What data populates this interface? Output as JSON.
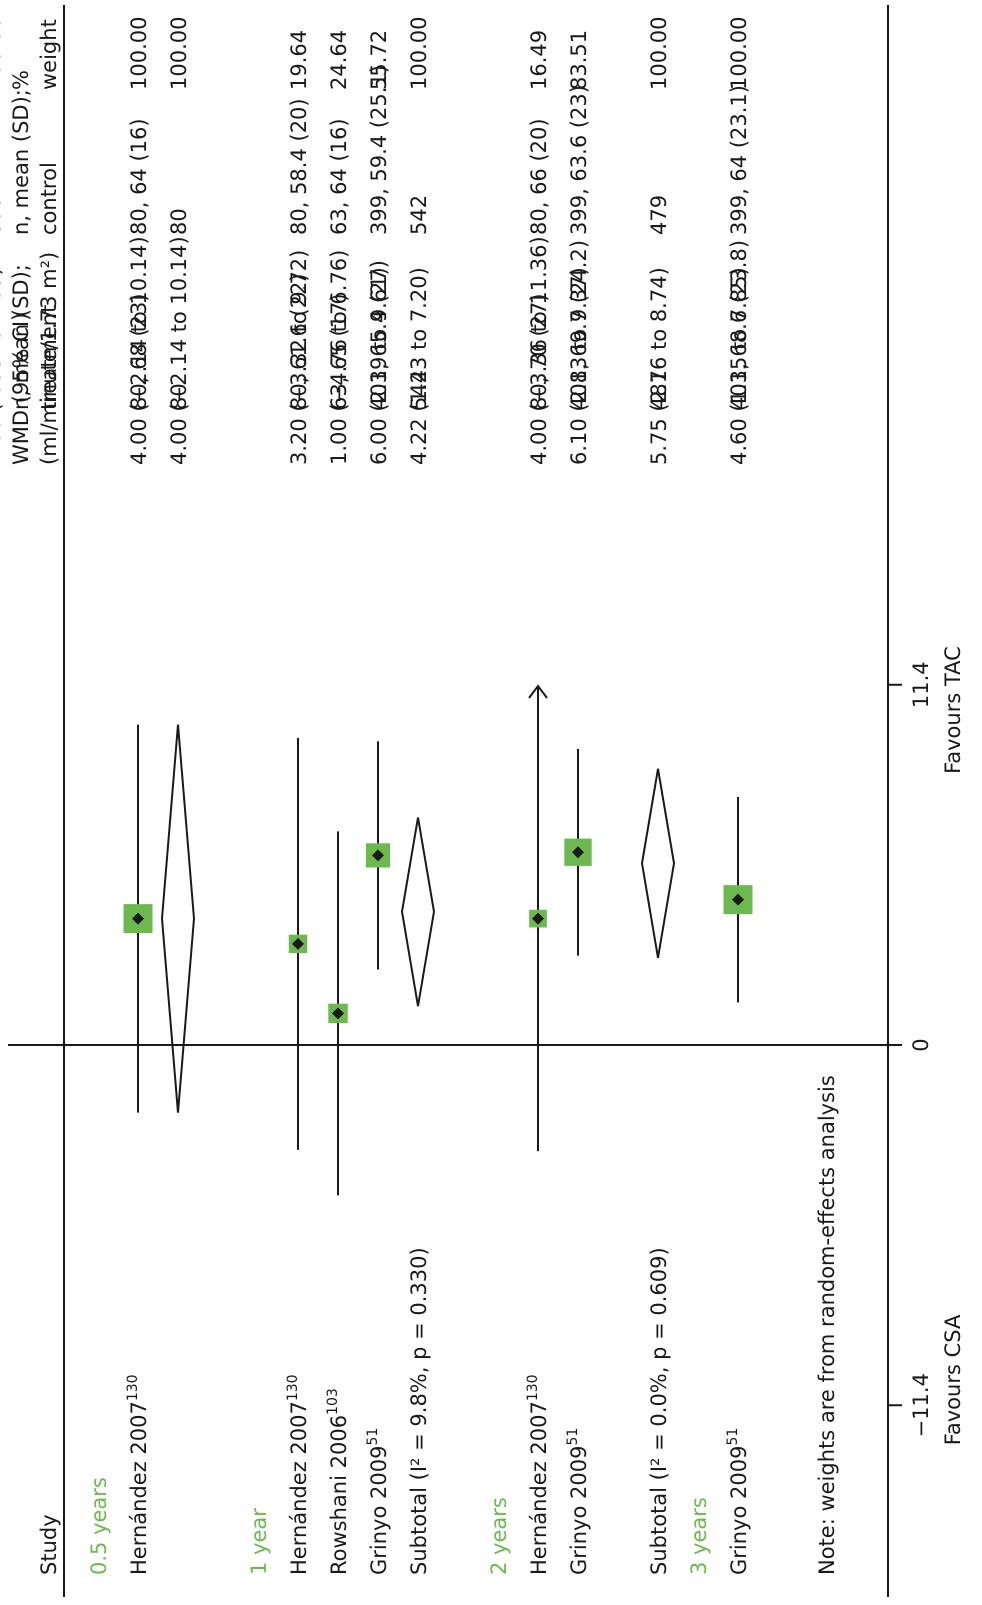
{
  "chart_data": {
    "type": "forest",
    "orientation": "rotated-90-ccw",
    "x_axis": {
      "ticks": [
        -11.4,
        0,
        11.4
      ],
      "tick_labels": [
        "−11.4",
        "0",
        "11.4"
      ],
      "range": [
        -11.4,
        11.4
      ]
    },
    "favours_left": "Favours CSA",
    "favours_right": "Favours TAC",
    "columns": {
      "study": "Study",
      "wmd_line1": "WMD (95% CI)",
      "wmd_line2": "(ml/minute/1.73 m²)",
      "treat_line1": "n, mean (SD);",
      "treat_line2": "treatment",
      "ctrl_line1": "n, mean (SD);",
      "ctrl_line2": "control",
      "weight_line1": "%",
      "weight_line2": "weight"
    },
    "rows": [
      {
        "kind": "group",
        "label": "0.5 years"
      },
      {
        "kind": "study",
        "label": "Hernández 2007",
        "sup": "130",
        "est": 4.0,
        "lo": -2.14,
        "hi": 10.14,
        "wmd": "4.00 (−2.14 to 10.14)",
        "treat": "80, 68 (23)",
        "ctrl": "80, 64 (16)",
        "weight": "100.00",
        "w": 100.0
      },
      {
        "kind": "subtotal",
        "label": "",
        "est": 4.0,
        "lo": -2.14,
        "hi": 10.14,
        "wmd": "4.00 (−2.14 to 10.14)",
        "treat": "80",
        "ctrl": "80",
        "weight": "100.00"
      },
      {
        "kind": "group",
        "label": "1 year"
      },
      {
        "kind": "study",
        "label": "Hernández 2007",
        "sup": "130",
        "est": 3.2,
        "lo": -3.32,
        "hi": 9.72,
        "wmd": "3.20 (−3.32 to 9.72)",
        "treat": "80, 61.6 (22)",
        "ctrl": "80, 58.4 (20)",
        "weight": "19.64",
        "w": 19.64
      },
      {
        "kind": "study",
        "label": "Rowshani 2006",
        "sup": "103",
        "est": 1.0,
        "lo": -4.76,
        "hi": 6.76,
        "wmd": "1.00 (−4.76 to 6.76)",
        "treat": "63, 65 (17)",
        "ctrl": "63, 64 (16)",
        "weight": "24.64",
        "w": 24.64
      },
      {
        "kind": "study",
        "label": "Grinyo 2009",
        "sup": "51",
        "est": 6.0,
        "lo": 2.39,
        "hi": 9.61,
        "wmd": "6.00 (2.39 to 9.61)",
        "treat": "401, 65.4 (27)",
        "ctrl": "399, 59.4 (25.1)",
        "weight": "55.72",
        "w": 55.72
      },
      {
        "kind": "subtotal",
        "label": "Subtotal (I² = 9.8%, p = 0.330)",
        "est": 4.22,
        "lo": 1.23,
        "hi": 7.2,
        "wmd": "4.22 (1.23 to 7.20)",
        "treat": "544",
        "ctrl": "542",
        "weight": "100.00"
      },
      {
        "kind": "group",
        "label": "2 years"
      },
      {
        "kind": "study",
        "label": "Hernández 2007",
        "sup": "130",
        "est": 4.0,
        "lo": -3.36,
        "hi": 11.36,
        "wmd": "4.00 (−3.36 to 11.36)",
        "treat": "80, 70 (27)",
        "ctrl": "80, 66 (20)",
        "weight": "16.49",
        "w": 16.49,
        "arrow_right": true
      },
      {
        "kind": "study",
        "label": "Grinyo 2009",
        "sup": "51",
        "est": 6.1,
        "lo": 2.83,
        "hi": 9.37,
        "wmd": "6.10 (2.83 to 9.37)",
        "treat": "401, 69.7 (24.2)",
        "ctrl": "399, 63.6 (23)",
        "weight": "83.51",
        "w": 83.51
      },
      {
        "kind": "subtotal",
        "label": "Subtotal (I² = 0.0%, p = 0.609)",
        "est": 5.75,
        "lo": 2.76,
        "hi": 8.74,
        "wmd": "5.75 (2.76 to 8.74)",
        "treat": "481",
        "ctrl": "479",
        "weight": "100.00"
      },
      {
        "kind": "group",
        "label": "3 years"
      },
      {
        "kind": "study",
        "label": "Grinyo 2009",
        "sup": "51",
        "est": 4.6,
        "lo": 1.35,
        "hi": 7.85,
        "wmd": "4.60 (1.35 to 7.85)",
        "treat": "401, 68.6 (23.8)",
        "ctrl": "399, 64 (23.1)",
        "weight": "100.00",
        "w": 100.0
      },
      {
        "kind": "subtotal",
        "label": "",
        "est": 4.6,
        "lo": 1.35,
        "hi": 7.85,
        "wmd": "4.60 (1.35 to 7.85)",
        "treat": "401",
        "ctrl": "399",
        "weight": "100.00"
      }
    ],
    "note": "Note: weights are from random-effects analysis",
    "colors": {
      "box": "#6cba4f",
      "group": "#6cba4f",
      "line": "#1a1a1a"
    }
  }
}
